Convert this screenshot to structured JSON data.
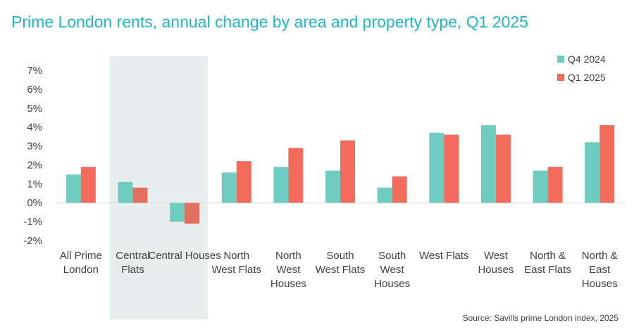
{
  "title": "Prime London rents, annual change by area and property type, Q1 2025",
  "source": "Source: Savills prime London index, 2025",
  "colors": {
    "title": "#1fb6c9",
    "q4": "#6fcdc0",
    "q1": "#f26b5b",
    "q1_highlighted": "#e0705f",
    "highlight_band": "#e6efed",
    "axis_line": "#d9d9d9"
  },
  "chart_data": {
    "type": "bar",
    "categories": [
      [
        "All Prime",
        "London"
      ],
      [
        "Central",
        "Flats"
      ],
      [
        "Central Houses"
      ],
      [
        "North",
        "West Flats"
      ],
      [
        "North",
        "West",
        "Houses"
      ],
      [
        "South",
        "West Flats"
      ],
      [
        "South",
        "West",
        "Houses"
      ],
      [
        "West Flats"
      ],
      [
        "West",
        "Houses"
      ],
      [
        "North &",
        "East Flats"
      ],
      [
        "North &",
        "East",
        "Houses"
      ]
    ],
    "series": [
      {
        "name": "Q4 2024",
        "values": [
          1.5,
          1.1,
          -1.0,
          1.6,
          1.9,
          1.7,
          0.8,
          3.7,
          4.1,
          1.7,
          3.2
        ]
      },
      {
        "name": "Q1 2025",
        "values": [
          1.9,
          0.8,
          -1.1,
          2.2,
          2.9,
          3.3,
          1.4,
          3.6,
          3.6,
          1.9,
          4.1
        ]
      }
    ],
    "y_ticks": [
      "7%",
      "6%",
      "5%",
      "4%",
      "3%",
      "2%",
      "1%",
      "0%",
      "-1%",
      "-2%"
    ],
    "ylim": [
      -2,
      7
    ],
    "highlighted_categories": [
      "Central Flats",
      "Central Houses"
    ],
    "legend_position": "top-right",
    "grid": false,
    "xlabel": "",
    "ylabel": ""
  }
}
